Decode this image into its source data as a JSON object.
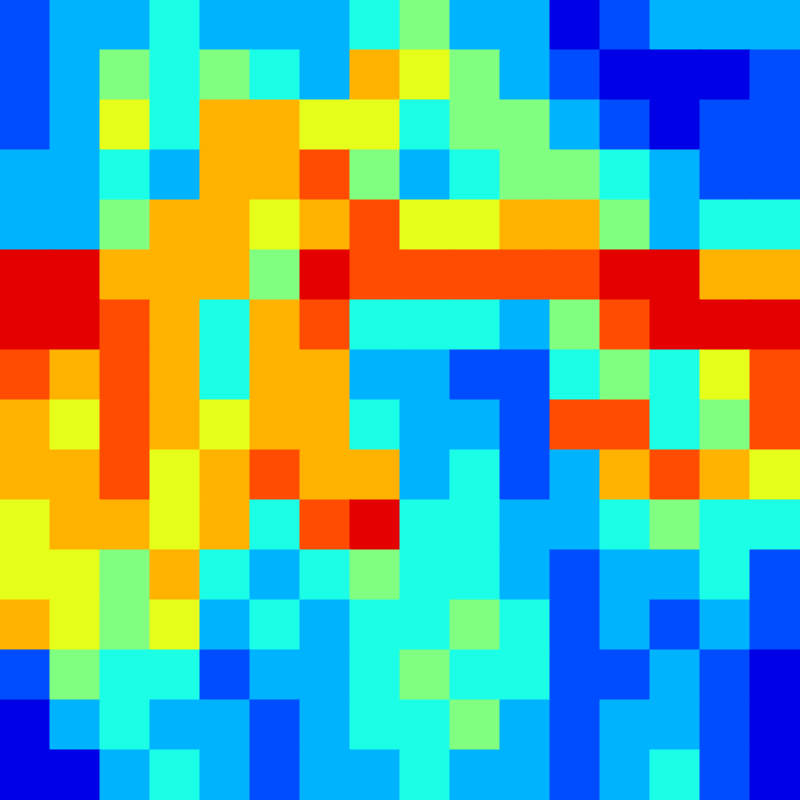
{
  "chart_data": {
    "type": "heatmap",
    "tick_labels": false,
    "zlim": [
      0,
      10
    ],
    "cells": [
      [
        2,
        3,
        3,
        4,
        3,
        3,
        3,
        4,
        5,
        3,
        3,
        1,
        2,
        3,
        3,
        3
      ],
      [
        2,
        3,
        5,
        4,
        5,
        4,
        3,
        7,
        6,
        5,
        3,
        2,
        1,
        1,
        1,
        2
      ],
      [
        2,
        3,
        6,
        4,
        7,
        7,
        6,
        6,
        4,
        5,
        5,
        3,
        2,
        1,
        2,
        2
      ],
      [
        3,
        3,
        4,
        3,
        7,
        7,
        8,
        5,
        3,
        4,
        5,
        5,
        4,
        3,
        2,
        2
      ],
      [
        3,
        3,
        5,
        7,
        7,
        6,
        7,
        8,
        6,
        6,
        7,
        7,
        5,
        3,
        4,
        4
      ],
      [
        9,
        9,
        7,
        7,
        7,
        5,
        9,
        8,
        8,
        8,
        8,
        8,
        9,
        9,
        7,
        7
      ],
      [
        9,
        9,
        8,
        7,
        4,
        7,
        8,
        4,
        4,
        4,
        3,
        5,
        8,
        9,
        9,
        9
      ],
      [
        8,
        7,
        8,
        7,
        4,
        7,
        7,
        3,
        3,
        2,
        2,
        4,
        5,
        4,
        6,
        8
      ],
      [
        7,
        6,
        8,
        7,
        6,
        7,
        7,
        4,
        3,
        3,
        2,
        8,
        8,
        4,
        5,
        8
      ],
      [
        7,
        7,
        8,
        6,
        7,
        8,
        7,
        7,
        3,
        4,
        2,
        3,
        7,
        8,
        7,
        6
      ],
      [
        6,
        7,
        7,
        6,
        7,
        4,
        8,
        9,
        4,
        4,
        3,
        3,
        4,
        5,
        4,
        4
      ],
      [
        6,
        6,
        5,
        7,
        4,
        3,
        4,
        5,
        4,
        4,
        3,
        2,
        3,
        3,
        4,
        2
      ],
      [
        7,
        6,
        5,
        6,
        3,
        4,
        3,
        4,
        4,
        5,
        4,
        2,
        3,
        2,
        3,
        2
      ],
      [
        2,
        5,
        4,
        4,
        2,
        3,
        3,
        4,
        5,
        4,
        4,
        2,
        2,
        3,
        2,
        1
      ],
      [
        1,
        3,
        4,
        3,
        3,
        2,
        3,
        4,
        4,
        5,
        3,
        2,
        3,
        3,
        2,
        1
      ],
      [
        1,
        1,
        3,
        4,
        3,
        2,
        3,
        3,
        4,
        3,
        3,
        2,
        3,
        4,
        2,
        1
      ]
    ]
  }
}
